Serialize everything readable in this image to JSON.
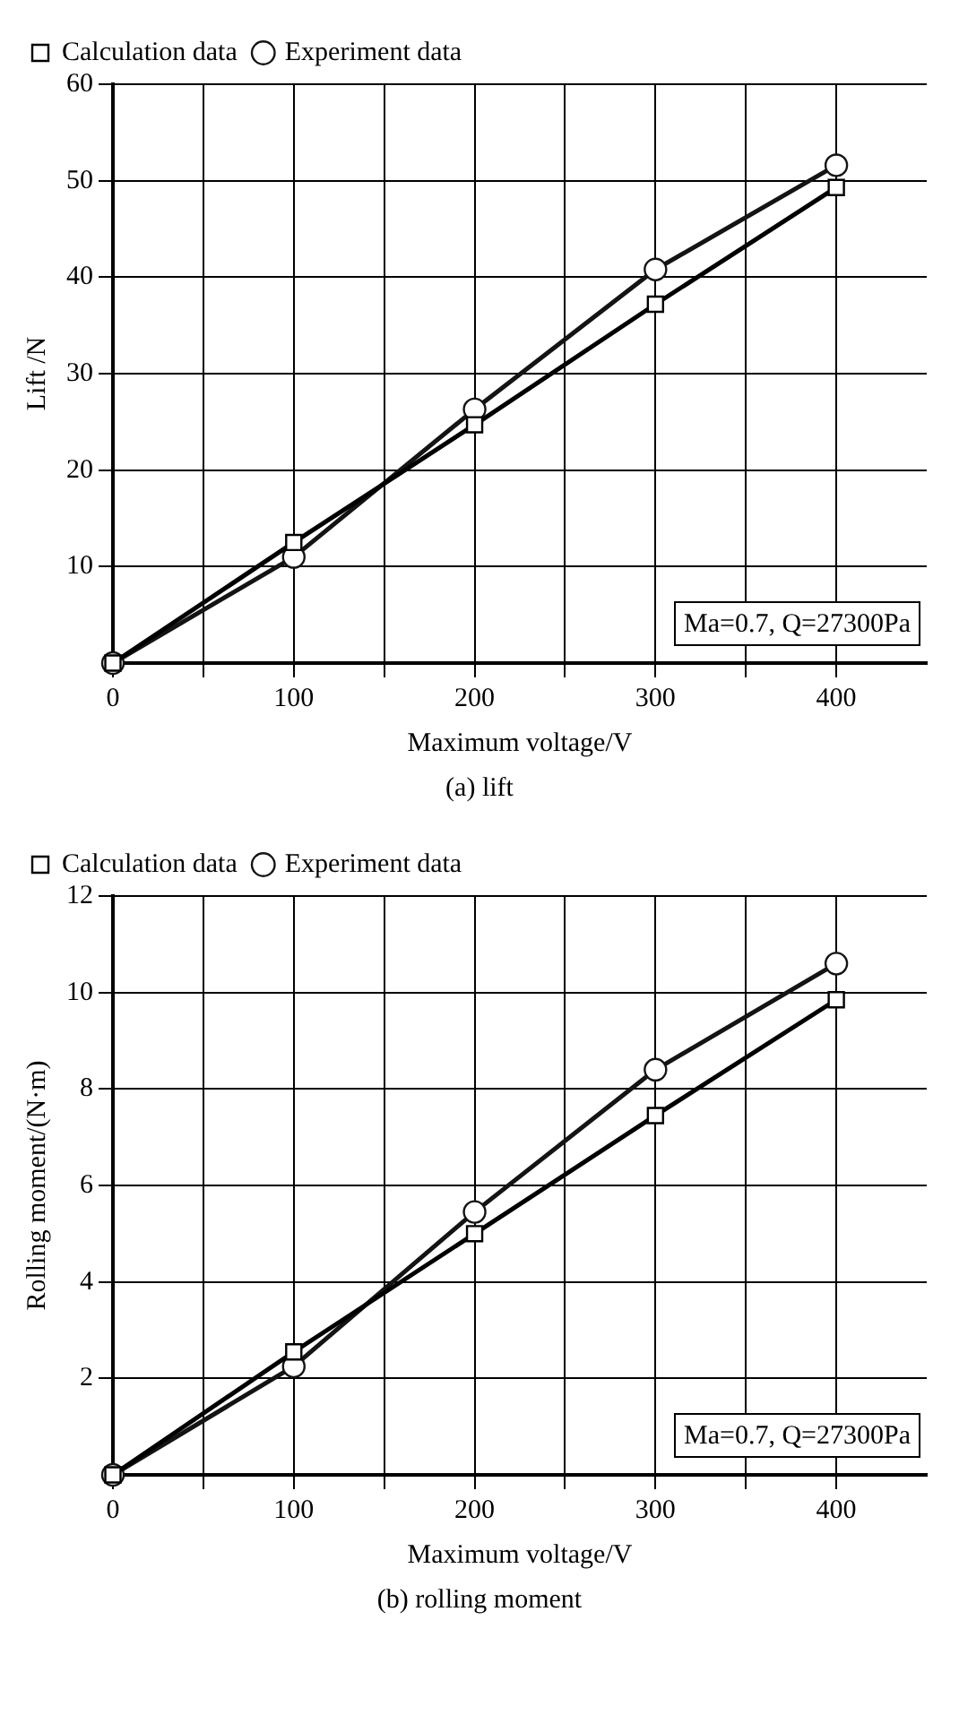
{
  "chart_data": [
    {
      "type": "line",
      "xlabel": "Maximum voltage/V",
      "ylabel": "Lift /N",
      "x": [
        0,
        100,
        200,
        300,
        400
      ],
      "series": [
        {
          "name": "Calculation data",
          "color": "#000000",
          "marker": "square",
          "values": [
            0,
            12.5,
            24.7,
            37.2,
            49.3
          ]
        },
        {
          "name": "Experiment data",
          "color": "#141414",
          "marker": "circle",
          "values": [
            0,
            11,
            26.3,
            40.8,
            51.6
          ]
        }
      ],
      "xlim": [
        0,
        450
      ],
      "xticks": [
        0,
        {
          "value": 50,
          "label": null
        },
        100,
        {
          "value": 150,
          "label": null
        },
        200,
        {
          "value": 250,
          "label": null
        },
        300,
        {
          "value": 350,
          "label": null
        },
        400
      ],
      "ylim": [
        0,
        60
      ],
      "yticks": [
        10,
        20,
        30,
        40,
        50,
        60
      ],
      "grid": true,
      "legend": "top left",
      "line_style": "solid",
      "annotations": [
        "Ma=0.7, Q=27300Pa",
        "(a) lift"
      ]
    },
    {
      "type": "line",
      "xlabel": "Maximum voltage/V",
      "ylabel": "Rolling moment/(N·m)",
      "x": [
        0,
        100,
        200,
        300,
        400
      ],
      "series": [
        {
          "name": "Calculation data",
          "color": "#000000",
          "marker": "square",
          "values": [
            0,
            2.55,
            5.0,
            7.45,
            9.85
          ]
        },
        {
          "name": "Experiment data",
          "color": "#141414",
          "marker": "circle",
          "values": [
            0,
            2.25,
            5.45,
            8.4,
            10.6
          ]
        }
      ],
      "xlim": [
        0,
        450
      ],
      "xticks": [
        0,
        {
          "value": 50,
          "label": null
        },
        100,
        {
          "value": 150,
          "label": null
        },
        200,
        {
          "value": 250,
          "label": null
        },
        300,
        {
          "value": 350,
          "label": null
        },
        400
      ],
      "ylim": [
        0,
        12
      ],
      "yticks": [
        2,
        4,
        6,
        8,
        10,
        12
      ],
      "grid": true,
      "legend": "top left",
      "line_style": "solid",
      "annotations": [
        "Ma=0.7, Q=27300Pa",
        "(b) rolling moment"
      ]
    }
  ]
}
